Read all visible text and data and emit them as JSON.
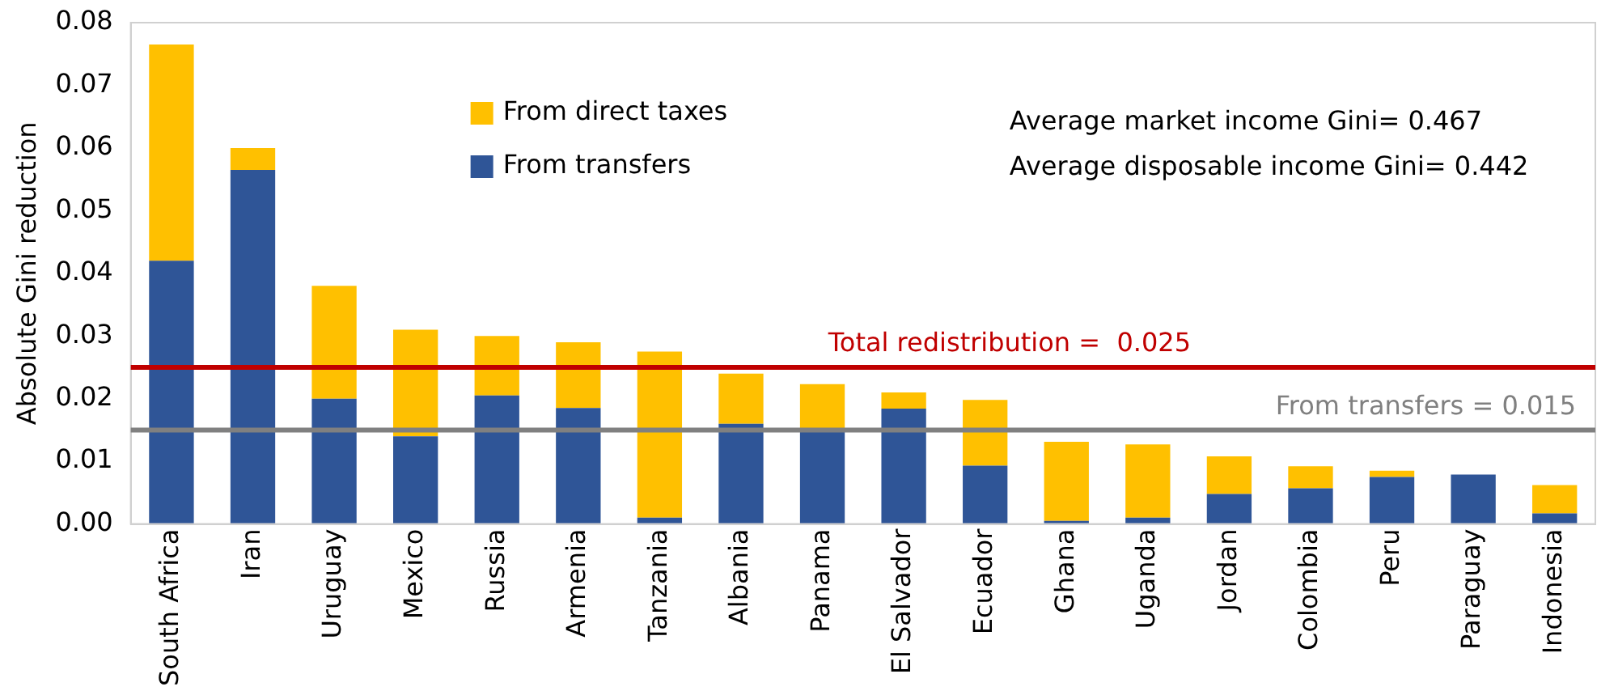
{
  "chart_data": {
    "type": "bar",
    "stacked": true,
    "ylabel": "Absolute Gini reduction",
    "categories": [
      "South Africa",
      "Iran",
      "Uruguay",
      "Mexico",
      "Russia",
      "Armenia",
      "Tanzania",
      "Albania",
      "Panama",
      "El Salvador",
      "Ecuador",
      "Ghana",
      "Uganda",
      "Jordan",
      "Colombia",
      "Peru",
      "Paraguay",
      "Indonesia"
    ],
    "series": [
      {
        "name": "From transfers",
        "color": "#2f5597",
        "values": [
          0.042,
          0.0565,
          0.02,
          0.014,
          0.0205,
          0.0185,
          0.001,
          0.016,
          0.015,
          0.0184,
          0.0093,
          0.0005,
          0.001,
          0.0048,
          0.0057,
          0.0075,
          0.0079,
          0.0017
        ]
      },
      {
        "name": "From direct taxes",
        "color": "#ffc000",
        "values": [
          0.0345,
          0.0035,
          0.018,
          0.017,
          0.0095,
          0.0105,
          0.0265,
          0.008,
          0.0073,
          0.0026,
          0.0105,
          0.0126,
          0.0117,
          0.006,
          0.0035,
          0.001,
          0,
          0.0045
        ]
      }
    ],
    "ylim": [
      0,
      0.08
    ],
    "yticks": [
      {
        "value": 0,
        "label": "0.00"
      },
      0.01,
      0.02,
      0.03,
      0.04,
      0.05,
      0.06,
      0.07,
      0.08
    ],
    "grid": false,
    "legend": "top left",
    "ref_lines": [
      {
        "axis": "y",
        "value": 0.025,
        "label": "Total redistribution =  0.025",
        "color": "#c00000"
      },
      {
        "axis": "y",
        "value": 0.015,
        "label": "From transfers = 0.015",
        "color": "#808080"
      }
    ],
    "annotations": [
      "Average market income Gini= 0.467",
      "Average disposable income Gini= 0.442"
    ]
  }
}
